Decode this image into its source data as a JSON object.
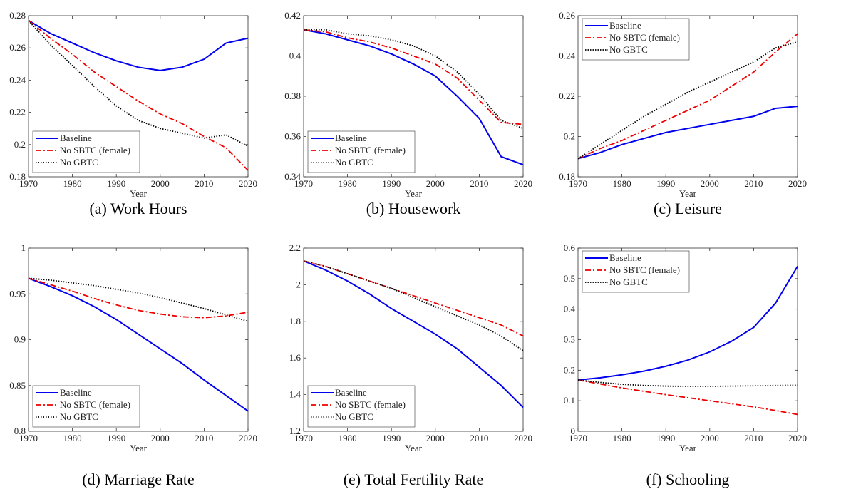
{
  "chart_data": [
    {
      "type": "line",
      "caption": "(a) Work Hours",
      "xlabel": "Year",
      "x": [
        1970,
        1975,
        1980,
        1985,
        1990,
        1995,
        2000,
        2005,
        2010,
        2015,
        2020
      ],
      "xlim": [
        1970,
        2020
      ],
      "xticks": [
        1970,
        1980,
        1990,
        2000,
        2010,
        2020
      ],
      "ylim": [
        0.18,
        0.28
      ],
      "yticks": [
        0.18,
        0.2,
        0.22,
        0.24,
        0.26,
        0.28
      ],
      "legend": "lower left",
      "grid": false,
      "series": [
        {
          "name": "Baseline",
          "color": "#0000ee",
          "style": "solid",
          "values": [
            0.277,
            0.269,
            0.263,
            0.257,
            0.252,
            0.248,
            0.246,
            0.248,
            0.253,
            0.263,
            0.266
          ]
        },
        {
          "name": "No SBTC (female)",
          "color": "#ee0000",
          "style": "dashdot",
          "values": [
            0.277,
            0.266,
            0.256,
            0.245,
            0.236,
            0.227,
            0.219,
            0.213,
            0.205,
            0.198,
            0.184
          ]
        },
        {
          "name": "No GBTC",
          "color": "#000000",
          "style": "dotted",
          "values": [
            0.277,
            0.262,
            0.249,
            0.236,
            0.224,
            0.215,
            0.21,
            0.207,
            0.204,
            0.206,
            0.199
          ]
        }
      ]
    },
    {
      "type": "line",
      "caption": "(b) Housework",
      "xlabel": "Year",
      "x": [
        1970,
        1975,
        1980,
        1985,
        1990,
        1995,
        2000,
        2005,
        2010,
        2015,
        2020
      ],
      "xlim": [
        1970,
        2020
      ],
      "xticks": [
        1970,
        1980,
        1990,
        2000,
        2010,
        2020
      ],
      "ylim": [
        0.34,
        0.42
      ],
      "yticks": [
        0.34,
        0.36,
        0.38,
        0.4,
        0.42
      ],
      "legend": "lower left",
      "grid": false,
      "series": [
        {
          "name": "Baseline",
          "color": "#0000ee",
          "style": "solid",
          "values": [
            0.413,
            0.411,
            0.408,
            0.405,
            0.401,
            0.396,
            0.39,
            0.38,
            0.369,
            0.35,
            0.346
          ]
        },
        {
          "name": "No SBTC (female)",
          "color": "#ee0000",
          "style": "dashdot",
          "values": [
            0.413,
            0.412,
            0.409,
            0.407,
            0.404,
            0.4,
            0.396,
            0.389,
            0.378,
            0.367,
            0.366
          ]
        },
        {
          "name": "No GBTC",
          "color": "#000000",
          "style": "dotted",
          "values": [
            0.413,
            0.413,
            0.411,
            0.41,
            0.408,
            0.405,
            0.4,
            0.392,
            0.381,
            0.368,
            0.364
          ]
        }
      ]
    },
    {
      "type": "line",
      "caption": "(c) Leisure",
      "xlabel": "Year",
      "x": [
        1970,
        1975,
        1980,
        1985,
        1990,
        1995,
        2000,
        2005,
        2010,
        2015,
        2020
      ],
      "xlim": [
        1970,
        2020
      ],
      "xticks": [
        1970,
        1980,
        1990,
        2000,
        2010,
        2020
      ],
      "ylim": [
        0.18,
        0.26
      ],
      "yticks": [
        0.18,
        0.2,
        0.22,
        0.24,
        0.26
      ],
      "legend": "upper left",
      "grid": false,
      "series": [
        {
          "name": "Baseline",
          "color": "#0000ee",
          "style": "solid",
          "values": [
            0.189,
            0.192,
            0.196,
            0.199,
            0.202,
            0.204,
            0.206,
            0.208,
            0.21,
            0.214,
            0.215
          ]
        },
        {
          "name": "No SBTC (female)",
          "color": "#ee0000",
          "style": "dashdot",
          "values": [
            0.189,
            0.194,
            0.198,
            0.203,
            0.208,
            0.213,
            0.218,
            0.225,
            0.232,
            0.242,
            0.251
          ]
        },
        {
          "name": "No GBTC",
          "color": "#000000",
          "style": "dotted",
          "values": [
            0.189,
            0.196,
            0.203,
            0.21,
            0.216,
            0.222,
            0.227,
            0.232,
            0.237,
            0.244,
            0.247
          ]
        }
      ]
    },
    {
      "type": "line",
      "caption": "(d) Marriage Rate",
      "xlabel": "Year",
      "x": [
        1970,
        1975,
        1980,
        1985,
        1990,
        1995,
        2000,
        2005,
        2010,
        2015,
        2020
      ],
      "xlim": [
        1970,
        2020
      ],
      "xticks": [
        1970,
        1980,
        1990,
        2000,
        2010,
        2020
      ],
      "ylim": [
        0.8,
        1
      ],
      "yticks": [
        0.8,
        0.85,
        0.9,
        0.95,
        1
      ],
      "legend": "lower left",
      "grid": false,
      "series": [
        {
          "name": "Baseline",
          "color": "#0000ee",
          "style": "solid",
          "values": [
            0.967,
            0.958,
            0.948,
            0.936,
            0.922,
            0.906,
            0.89,
            0.874,
            0.856,
            0.839,
            0.822
          ]
        },
        {
          "name": "No SBTC (female)",
          "color": "#ee0000",
          "style": "dashdot",
          "values": [
            0.967,
            0.96,
            0.953,
            0.945,
            0.938,
            0.932,
            0.928,
            0.925,
            0.924,
            0.926,
            0.93
          ]
        },
        {
          "name": "No GBTC",
          "color": "#000000",
          "style": "dotted",
          "values": [
            0.967,
            0.965,
            0.962,
            0.959,
            0.955,
            0.951,
            0.946,
            0.94,
            0.934,
            0.927,
            0.92
          ]
        }
      ]
    },
    {
      "type": "line",
      "caption": "(e) Total Fertility Rate",
      "xlabel": "Year",
      "x": [
        1970,
        1975,
        1980,
        1985,
        1990,
        1995,
        2000,
        2005,
        2010,
        2015,
        2020
      ],
      "xlim": [
        1970,
        2020
      ],
      "xticks": [
        1970,
        1980,
        1990,
        2000,
        2010,
        2020
      ],
      "ylim": [
        1.2,
        2.2
      ],
      "yticks": [
        1.2,
        1.4,
        1.6,
        1.8,
        2,
        2.2
      ],
      "legend": "lower left",
      "grid": false,
      "series": [
        {
          "name": "Baseline",
          "color": "#0000ee",
          "style": "solid",
          "values": [
            2.13,
            2.08,
            2.02,
            1.95,
            1.87,
            1.8,
            1.73,
            1.65,
            1.55,
            1.45,
            1.33
          ]
        },
        {
          "name": "No SBTC (female)",
          "color": "#ee0000",
          "style": "dashdot",
          "values": [
            2.13,
            2.1,
            2.06,
            2.02,
            1.98,
            1.94,
            1.9,
            1.86,
            1.82,
            1.78,
            1.72
          ]
        },
        {
          "name": "No GBTC",
          "color": "#000000",
          "style": "dotted",
          "values": [
            2.13,
            2.1,
            2.06,
            2.02,
            1.98,
            1.93,
            1.88,
            1.83,
            1.78,
            1.72,
            1.64
          ]
        }
      ]
    },
    {
      "type": "line",
      "caption": "(f) Schooling",
      "xlabel": "Year",
      "x": [
        1970,
        1975,
        1980,
        1985,
        1990,
        1995,
        2000,
        2005,
        2010,
        2015,
        2020
      ],
      "xlim": [
        1970,
        2020
      ],
      "xticks": [
        1970,
        1980,
        1990,
        2000,
        2010,
        2020
      ],
      "ylim": [
        0,
        0.6
      ],
      "yticks": [
        0,
        0.1,
        0.2,
        0.3,
        0.4,
        0.5,
        0.6
      ],
      "legend": "upper left",
      "grid": false,
      "series": [
        {
          "name": "Baseline",
          "color": "#0000ee",
          "style": "solid",
          "values": [
            0.168,
            0.175,
            0.185,
            0.197,
            0.213,
            0.233,
            0.26,
            0.295,
            0.34,
            0.42,
            0.54
          ]
        },
        {
          "name": "No SBTC (female)",
          "color": "#ee0000",
          "style": "dashdot",
          "values": [
            0.168,
            0.155,
            0.142,
            0.131,
            0.12,
            0.11,
            0.1,
            0.09,
            0.08,
            0.068,
            0.055
          ]
        },
        {
          "name": "No GBTC",
          "color": "#000000",
          "style": "dotted",
          "values": [
            0.168,
            0.16,
            0.154,
            0.15,
            0.148,
            0.147,
            0.147,
            0.148,
            0.149,
            0.15,
            0.151
          ]
        }
      ]
    }
  ]
}
